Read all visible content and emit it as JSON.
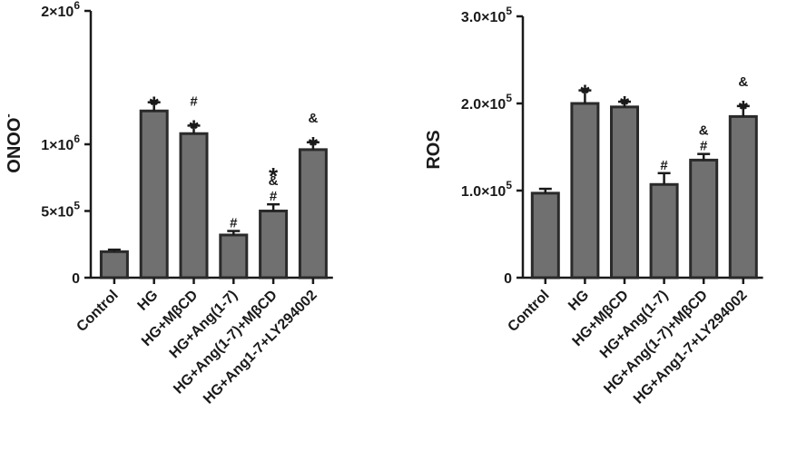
{
  "chart_data": [
    {
      "type": "bar",
      "title": "",
      "xlabel": "",
      "ylabel": "ONOO",
      "ylabel_superscript": "-",
      "ylim": [
        0,
        2000000
      ],
      "yticks": [
        {
          "value": 0,
          "label": "0",
          "exp": ""
        },
        {
          "value": 500000,
          "label": "5×10",
          "exp": "5"
        },
        {
          "value": 1000000,
          "label": "1×10",
          "exp": "6"
        },
        {
          "value": 2000000,
          "label": "2×10",
          "exp": "6"
        }
      ],
      "categories": [
        "Control",
        "HG",
        "HG+MβCD",
        "HG+Ang(1-7)",
        "HG+Ang(1-7)+MβCD",
        "HG+Ang1-7+LY294002"
      ],
      "values": [
        195000,
        1250000,
        1080000,
        320000,
        500000,
        960000
      ],
      "errors": [
        15000,
        65000,
        60000,
        30000,
        50000,
        55000
      ],
      "significance": [
        [],
        [
          "*"
        ],
        [
          "*",
          "#"
        ],
        [
          "#"
        ],
        [
          "#",
          "&",
          "*"
        ],
        [
          "*",
          "&"
        ]
      ],
      "grid": false,
      "bar_color": "#707070"
    },
    {
      "type": "bar",
      "title": "",
      "xlabel": "",
      "ylabel": "ROS",
      "ylabel_superscript": "",
      "ylim": [
        0,
        300000
      ],
      "yticks": [
        {
          "value": 0,
          "label": "0",
          "exp": ""
        },
        {
          "value": 100000,
          "label": "1.0×10",
          "exp": "5"
        },
        {
          "value": 200000,
          "label": "2.0×10",
          "exp": "5"
        },
        {
          "value": 300000,
          "label": "3.0×10",
          "exp": "5"
        }
      ],
      "categories": [
        "Control",
        "HG",
        "HG+MβCD",
        "HG+Ang(1-7)",
        "HG+Ang(1-7)+MβCD",
        "HG+Ang1-7+LY294002"
      ],
      "values": [
        97000,
        200000,
        196000,
        107000,
        135000,
        185000
      ],
      "errors": [
        5000,
        15000,
        6000,
        13000,
        7000,
        12000
      ],
      "significance": [
        [],
        [
          "*"
        ],
        [
          "*"
        ],
        [
          "#"
        ],
        [
          "#",
          "&"
        ],
        [
          "*",
          "&"
        ]
      ],
      "grid": false,
      "bar_color": "#707070"
    }
  ]
}
